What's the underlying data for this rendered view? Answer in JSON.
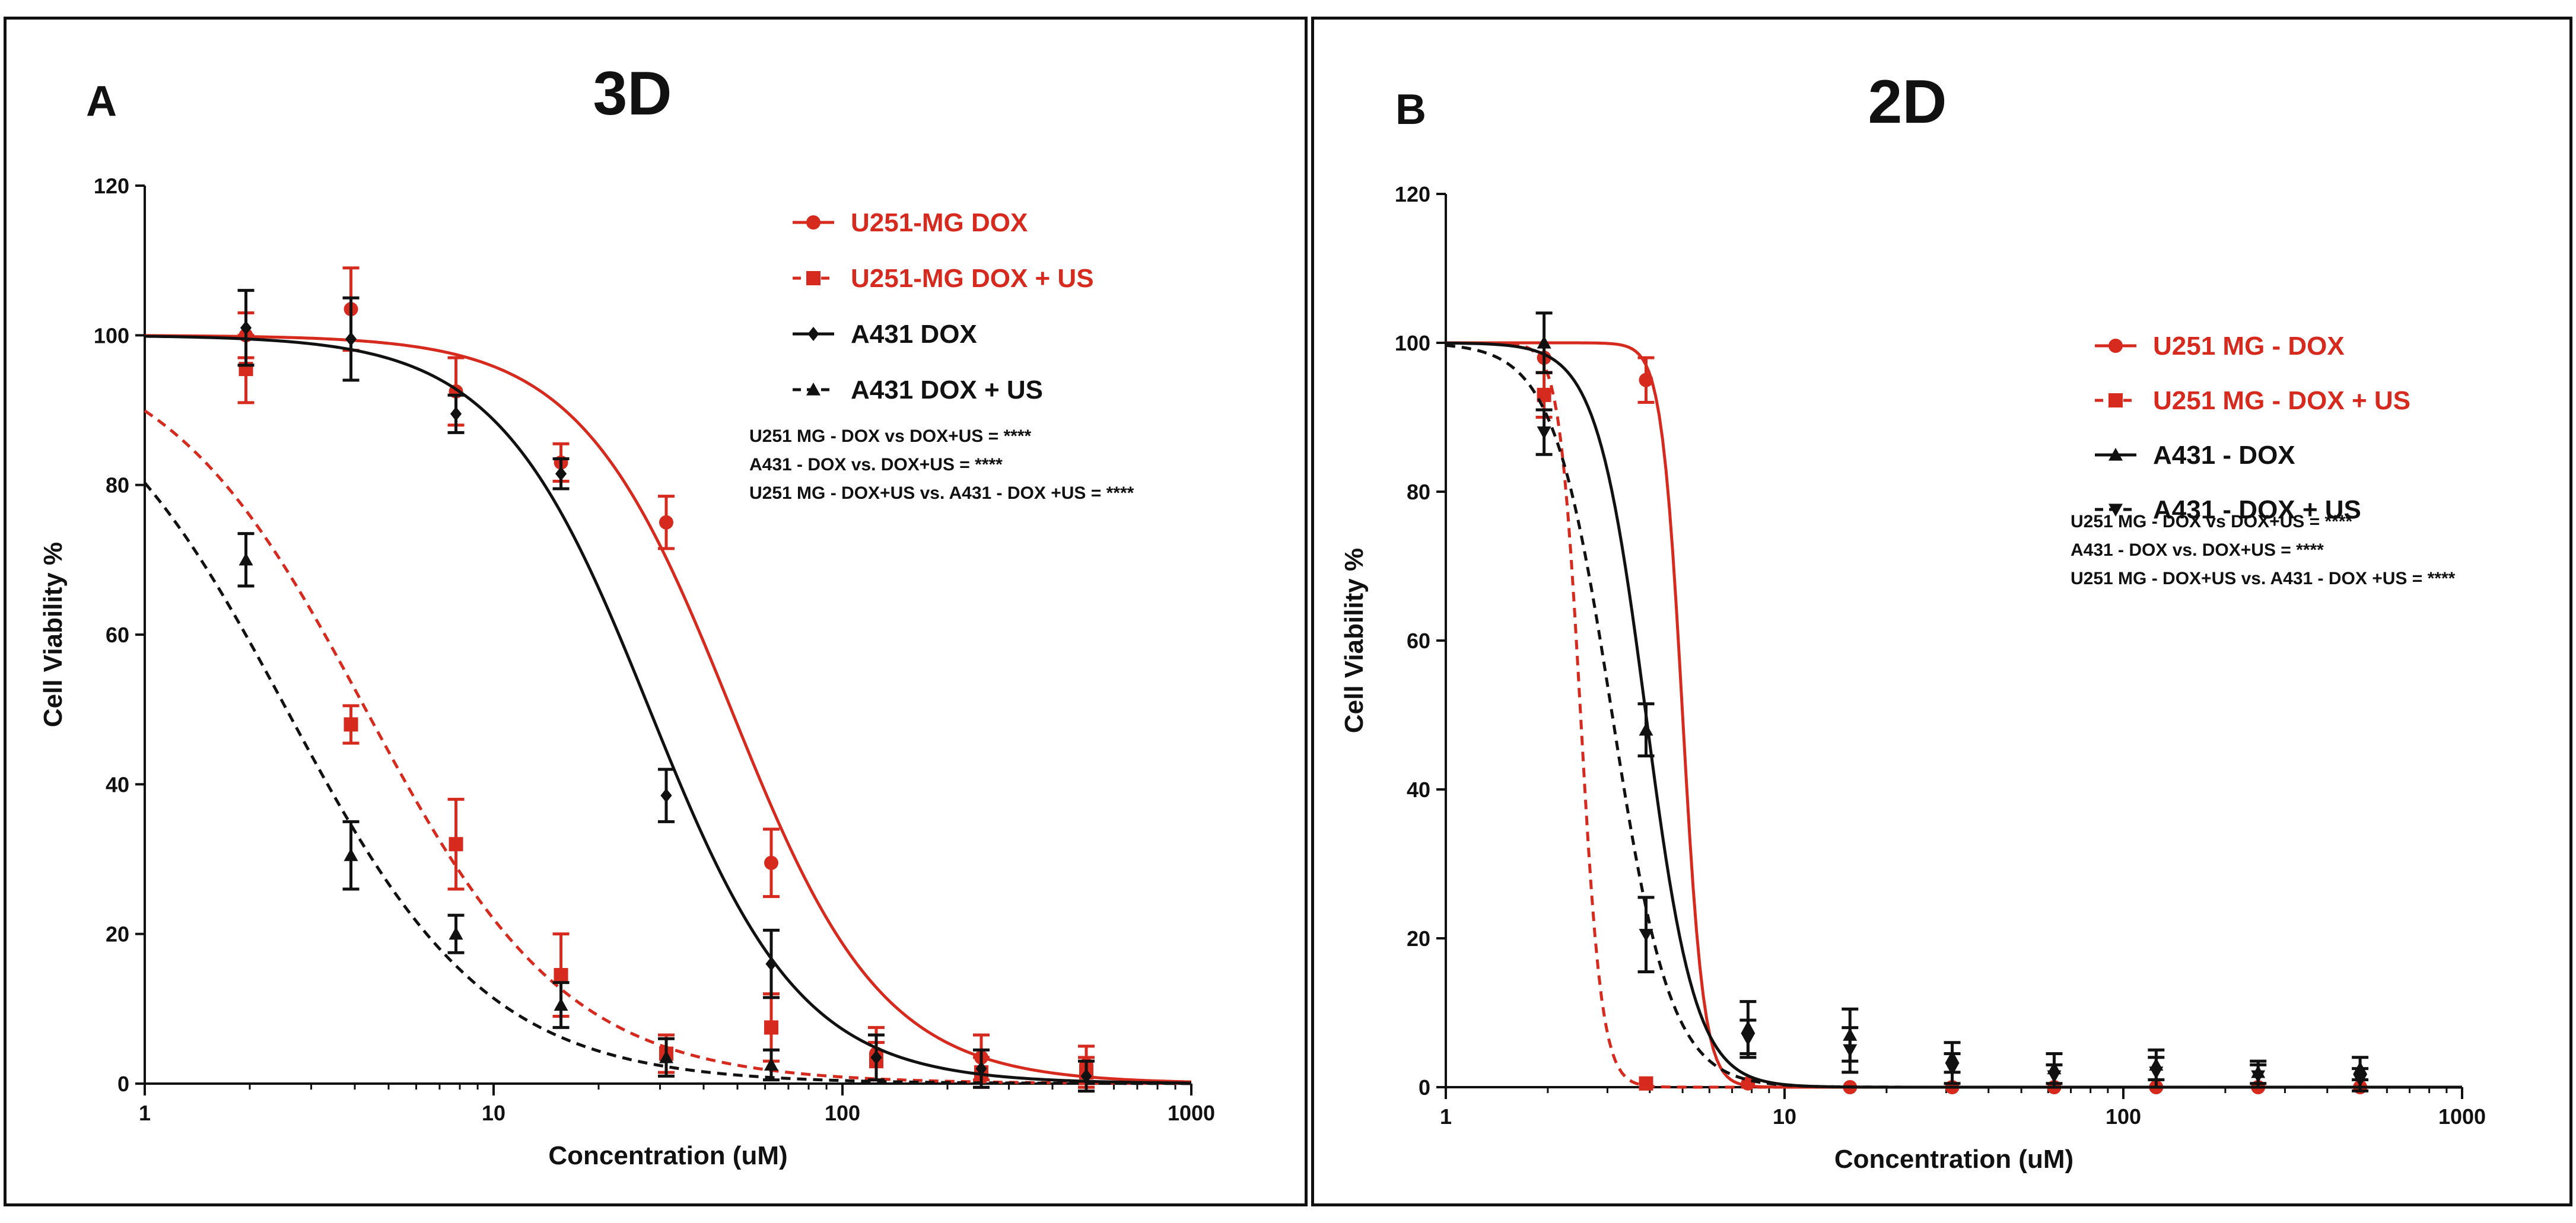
{
  "colors": {
    "red": "#d62a1e",
    "black": "#111111"
  },
  "chart_data": [
    {
      "type": "line",
      "panel_label": "A",
      "title": "3D",
      "xlabel": "Concentration (uM)",
      "ylabel": "Cell Viability %",
      "x_scale": "log",
      "xlim": [
        1,
        1000
      ],
      "ylim": [
        0,
        120
      ],
      "x_ticks": [
        "1",
        "10",
        "100",
        "1000"
      ],
      "y_ticks": [
        "0",
        "20",
        "40",
        "60",
        "80",
        "100",
        "120"
      ],
      "grid": false,
      "legend_position": "top-right",
      "series": [
        {
          "name": "U251-MG DOX",
          "color": "#d62a1e",
          "line": "solid",
          "marker": "circle",
          "ic50": 48,
          "hill": 2.0,
          "x": [
            1.95,
            3.9,
            7.8,
            15.6,
            31.25,
            62.5,
            125,
            250,
            500
          ],
          "y": [
            100,
            103.5,
            92.5,
            83,
            75,
            29.5,
            4,
            3.5,
            2.5
          ],
          "err": [
            3,
            5.5,
            4.5,
            2.5,
            3.5,
            4.5,
            3.5,
            3,
            2.5
          ]
        },
        {
          "name": "U251-MG DOX + US",
          "color": "#d62a1e",
          "line": "dashed",
          "marker": "square",
          "ic50": 4.3,
          "hill": 1.5,
          "x": [
            1.95,
            3.9,
            7.8,
            15.6,
            31.25,
            62.5,
            125,
            250,
            500
          ],
          "y": [
            95.5,
            48,
            32,
            14.5,
            4,
            7.5,
            3,
            1.5,
            1.5
          ],
          "err": [
            4.5,
            2.5,
            6,
            5.5,
            2.5,
            4.5,
            2.5,
            2,
            2
          ]
        },
        {
          "name": "A431 DOX",
          "color": "#111111",
          "line": "solid",
          "marker": "diamond",
          "ic50": 28,
          "hill": 2.0,
          "x": [
            1.95,
            3.9,
            7.8,
            15.6,
            31.25,
            62.5,
            125,
            250,
            500
          ],
          "y": [
            101,
            99.5,
            89.5,
            81.5,
            38.5,
            16,
            3.5,
            2,
            1
          ],
          "err": [
            5,
            5.5,
            2.5,
            2,
            3.5,
            4.5,
            3,
            2.5,
            2
          ]
        },
        {
          "name": "A431 DOX + US",
          "color": "#111111",
          "line": "dashed",
          "marker": "triangle-up",
          "ic50": 2.55,
          "hill": 1.5,
          "x": [
            1.95,
            3.9,
            7.8,
            15.6,
            31.25,
            62.5
          ],
          "y": [
            70,
            30.5,
            20,
            10.5,
            3.5,
            2.5
          ],
          "err": [
            3.5,
            4.5,
            2.5,
            3,
            2.5,
            2
          ]
        }
      ],
      "annotations": [
        "U251 MG - DOX vs DOX+US = ****",
        "A431 - DOX vs. DOX+US = ****",
        "U251 MG - DOX+US vs. A431 - DOX +US = ****"
      ]
    },
    {
      "type": "line",
      "panel_label": "B",
      "title": "2D",
      "xlabel": "Concentration (uM)",
      "ylabel": "Cell Viability %",
      "x_scale": "log",
      "xlim": [
        1,
        1000
      ],
      "ylim": [
        0,
        120
      ],
      "x_ticks": [
        "1",
        "10",
        "100",
        "1000"
      ],
      "y_ticks": [
        "0",
        "20",
        "40",
        "60",
        "80",
        "100",
        "120"
      ],
      "grid": false,
      "legend_position": "top-right",
      "series": [
        {
          "name": "U251 MG - DOX",
          "color": "#d62a1e",
          "line": "solid",
          "marker": "circle",
          "ic50": 5.0,
          "hill": 14,
          "x": [
            1.95,
            3.9,
            7.8,
            15.6,
            31.25,
            62.5,
            125,
            250,
            500
          ],
          "y": [
            98,
            95,
            0.5,
            0,
            0,
            0,
            0,
            0,
            0
          ],
          "err": [
            2,
            3,
            0,
            0,
            0,
            0,
            0,
            0,
            0
          ]
        },
        {
          "name": "U251 MG - DOX + US",
          "color": "#d62a1e",
          "line": "dashed",
          "marker": "square",
          "ic50": 2.5,
          "hill": 14,
          "x": [
            1.95,
            3.9
          ],
          "y": [
            93,
            0.5
          ],
          "err": [
            3,
            0
          ]
        },
        {
          "name": "A431 - DOX",
          "color": "#111111",
          "line": "solid",
          "marker": "triangle-up",
          "ic50": 3.9,
          "hill": 6,
          "x": [
            1.95,
            3.9,
            7.8,
            15.6,
            31.25,
            62.5,
            125,
            250,
            500
          ],
          "y": [
            100,
            48,
            8,
            7,
            4,
            2.5,
            3,
            2,
            2.5
          ],
          "err": [
            4,
            3.5,
            3.5,
            3.5,
            2,
            2,
            2,
            1.5,
            1.5
          ]
        },
        {
          "name": "A431 - DOX + US",
          "color": "#111111",
          "line": "dashed",
          "marker": "triangle-down",
          "ic50": 3.1,
          "hill": 5,
          "x": [
            1.95,
            3.9,
            7.8,
            15.6,
            31.25,
            62.5,
            125,
            250,
            500
          ],
          "y": [
            88,
            20.5,
            6.5,
            5,
            2.5,
            1.5,
            2,
            1.5,
            1
          ],
          "err": [
            3,
            5,
            2.5,
            3,
            2,
            1.5,
            2,
            1.5,
            1.5
          ]
        }
      ],
      "annotations": [
        "U251 MG - DOX vs DOX+US = ****",
        "A431 - DOX vs. DOX+US = ****",
        "U251 MG - DOX+US vs. A431 - DOX +US = ****"
      ]
    }
  ]
}
